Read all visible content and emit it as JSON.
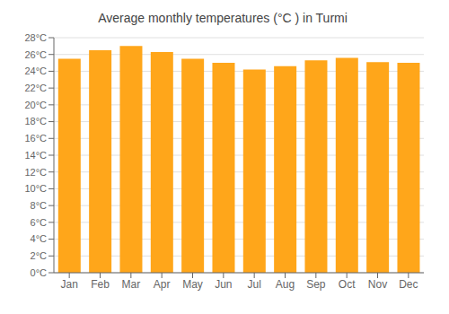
{
  "chart_data": {
    "type": "bar",
    "title": "Average monthly temperatures (°C ) in Turmi",
    "categories": [
      "Jan",
      "Feb",
      "Mar",
      "Apr",
      "May",
      "Jun",
      "Jul",
      "Aug",
      "Sep",
      "Oct",
      "Nov",
      "Dec"
    ],
    "values": [
      25.5,
      26.5,
      27.0,
      26.3,
      25.5,
      25.0,
      24.2,
      24.6,
      25.3,
      25.6,
      25.1,
      25.0
    ],
    "color": "#FFA61A",
    "ylim": [
      0,
      28
    ],
    "yticks": [
      {
        "value": 0,
        "label": "0°C"
      },
      {
        "value": 2,
        "label": "2°C"
      },
      {
        "value": 4,
        "label": "4°C"
      },
      {
        "value": 6,
        "label": "6°C"
      },
      {
        "value": 8,
        "label": "8°C"
      },
      {
        "value": 10,
        "label": "10°C"
      },
      {
        "value": 12,
        "label": "12°C"
      },
      {
        "value": 14,
        "label": "14°C"
      },
      {
        "value": 16,
        "label": "16°C"
      },
      {
        "value": 18,
        "label": "18°C"
      },
      {
        "value": 20,
        "label": "20°C"
      },
      {
        "value": 22,
        "label": "22°C"
      },
      {
        "value": 24,
        "label": "24°C"
      },
      {
        "value": 26,
        "label": "26°C"
      },
      {
        "value": 28,
        "label": "28°C"
      }
    ],
    "grid": true
  }
}
